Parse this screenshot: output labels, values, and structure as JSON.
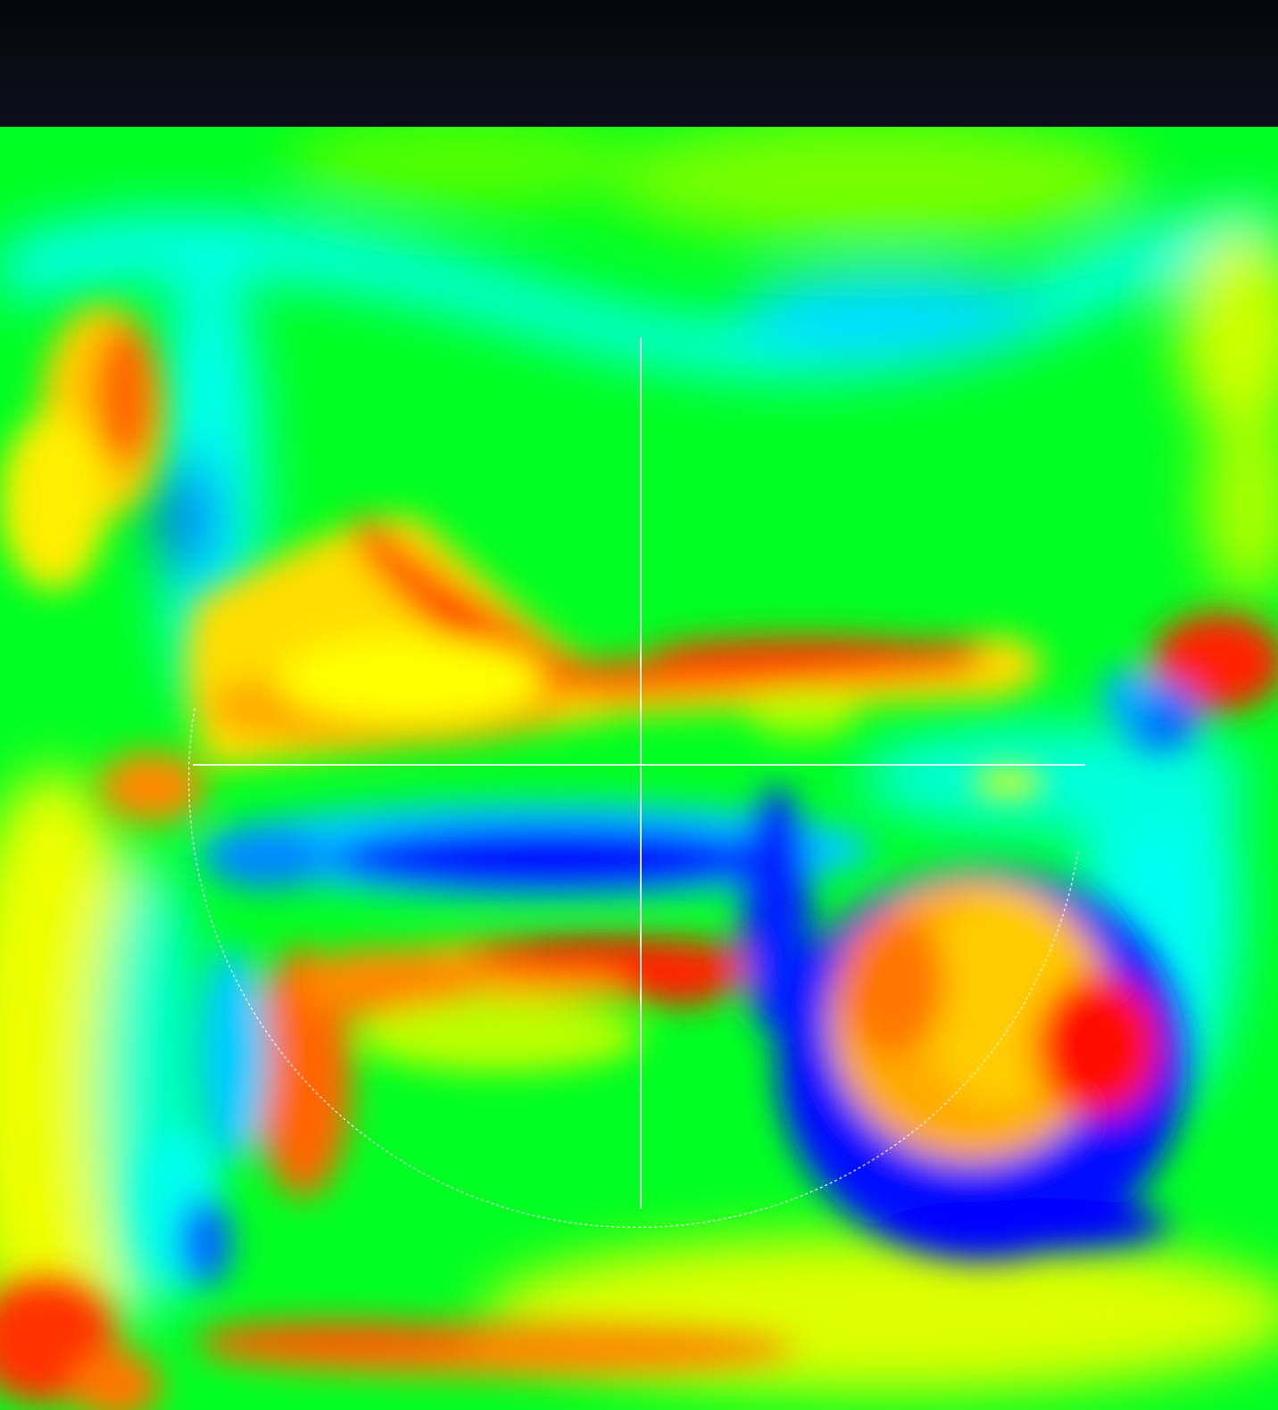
{
  "viewer": {
    "colormap": [
      "#0000ff",
      "#00aaff",
      "#00ffff",
      "#00ff88",
      "#00ff00",
      "#88ff00",
      "#ffff00",
      "#ffaa00",
      "#ff6600",
      "#ff0000"
    ],
    "background_color": "#00ff22",
    "top_bar_color": "#0a0d16"
  },
  "overlay": {
    "crosshair_color": "#ffffff",
    "guide_circle_color": "#ffffff",
    "guide_circle_style": "dotted"
  }
}
